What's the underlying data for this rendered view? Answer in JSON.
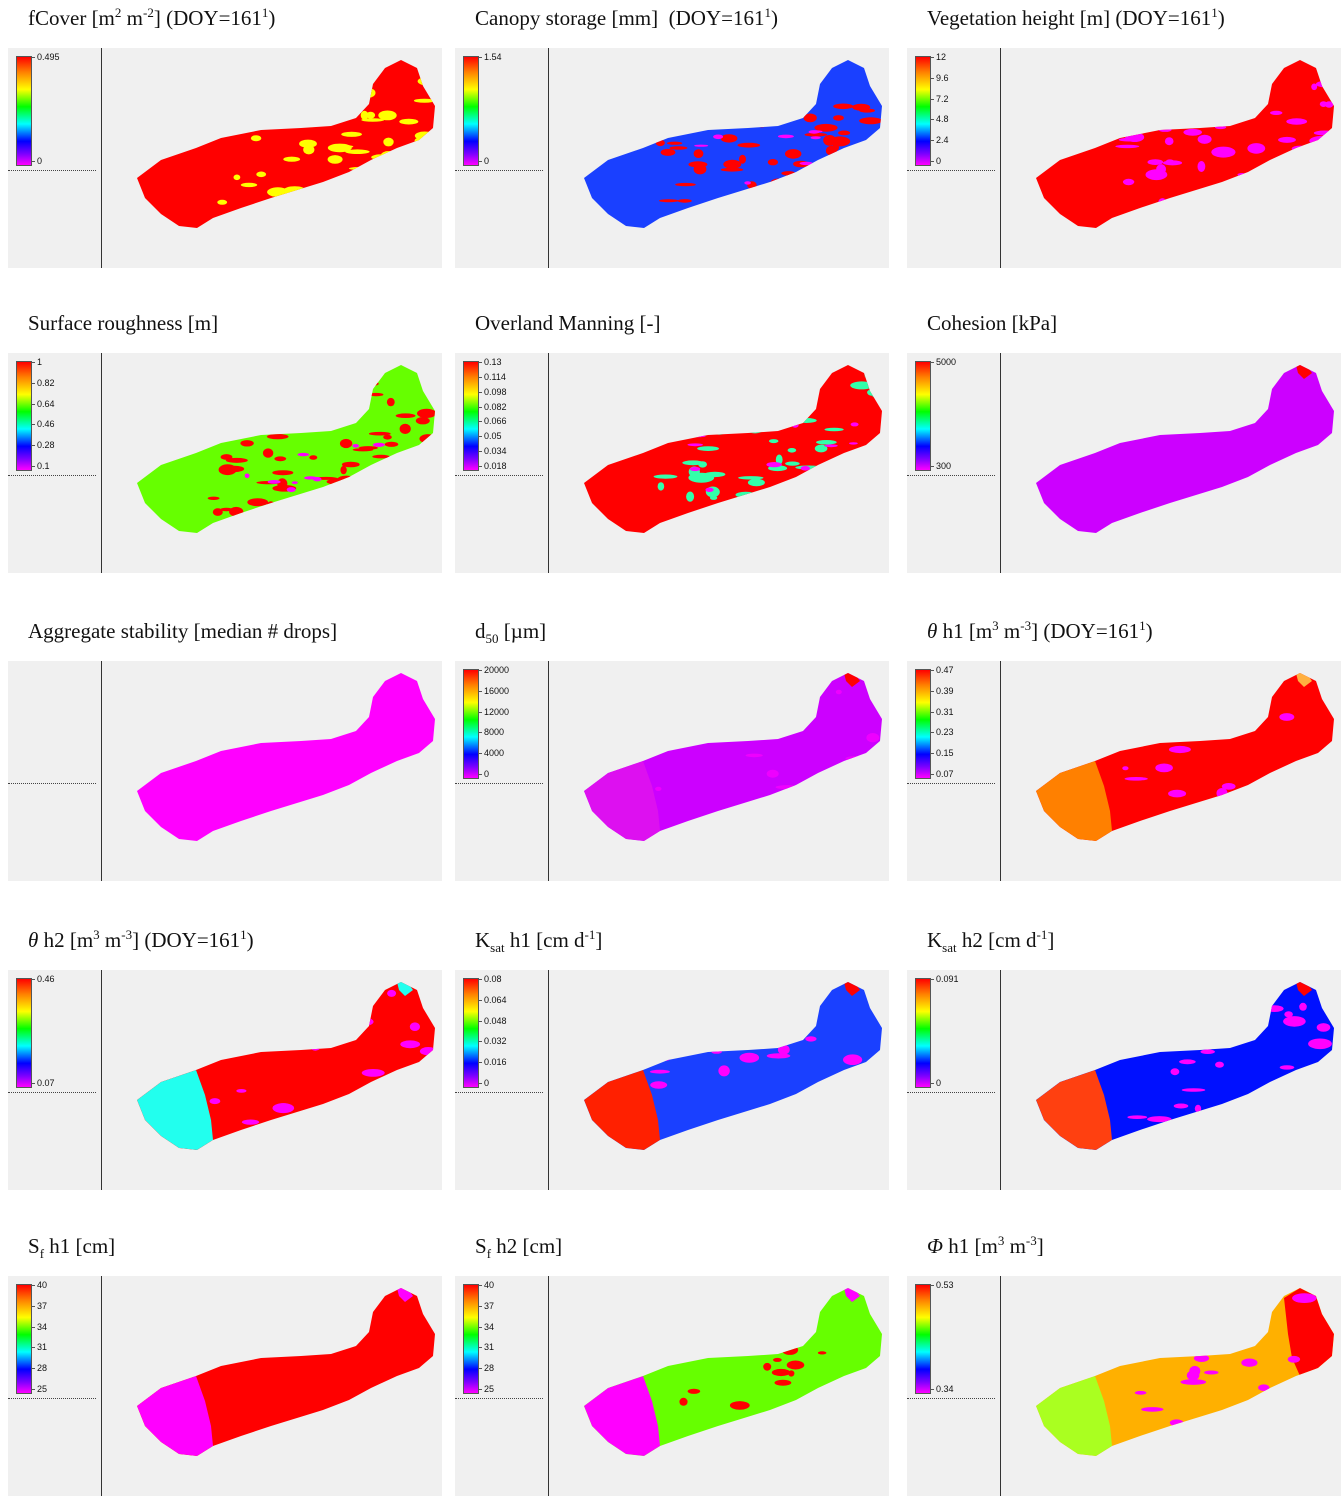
{
  "panels": [
    {
      "title_html": "fCover [m<sup>2</sup> m<sup>-2</sup>] (DOY=161<sup>1</sup>)",
      "ticks": [
        "0.495",
        "0"
      ],
      "map": {
        "base": "#ff0000",
        "patch": "#ffff00",
        "patch2": null,
        "edge": null
      }
    },
    {
      "title_html": "Canopy storage [mm] &nbsp;(DOY=161<sup>1</sup>)",
      "ticks": [
        "1.54",
        "0"
      ],
      "map": {
        "base": "#1a40ff",
        "patch": "#ff0000",
        "patch2": "#ff00ff",
        "edge": null
      }
    },
    {
      "title_html": "Vegetation height [m] (DOY=161<sup>1</sup>)",
      "ticks": [
        "12",
        "9.6",
        "7.2",
        "4.8",
        "2.4",
        "0"
      ],
      "map": {
        "base": "#ff0000",
        "patch": "#ff00ff",
        "patch2": null,
        "edge": null
      }
    },
    {
      "title_html": "Surface roughness [m]",
      "ticks": [
        "1",
        "0.82",
        "0.64",
        "0.46",
        "0.28",
        "0.1"
      ],
      "map": {
        "base": "#66ff00",
        "patch": "#ff0000",
        "patch2": "#ff00ff",
        "edge": null
      }
    },
    {
      "title_html": "Overland Manning [-]",
      "ticks": [
        "0.13",
        "0.114",
        "0.098",
        "0.082",
        "0.066",
        "0.05",
        "0.034",
        "0.018"
      ],
      "map": {
        "base": "#ff0000",
        "patch": "#33ffaa",
        "patch2": "#ff00ff",
        "edge": null
      }
    },
    {
      "title_html": "Cohesion [kPa]",
      "ticks": [
        "5000",
        "300"
      ],
      "map": {
        "base": "#cc00ff",
        "patch": null,
        "patch2": null,
        "edge": null,
        "tip": "#ff0000"
      }
    },
    {
      "title_html": "Aggregate stability [median # drops]",
      "ticks": [],
      "map": {
        "base": "#ff00ff",
        "patch": null,
        "patch2": null,
        "edge": null
      }
    },
    {
      "title_html": "d<sub>50</sub> [µm]",
      "ticks": [
        "20000",
        "16000",
        "12000",
        "8000",
        "4000",
        "0"
      ],
      "map": {
        "base": "#cc00ff",
        "patch": "#ee00ff",
        "patch2": null,
        "edge": "#dd10f0",
        "tip": "#ff0000"
      }
    },
    {
      "title_html": "<i>θ</i> h1 [m<sup>3</sup> m<sup>-3</sup>] (DOY=161<sup>1</sup>)",
      "ticks": [
        "0.47",
        "0.39",
        "0.31",
        "0.23",
        "0.15",
        "0.07"
      ],
      "map": {
        "base": "#ff0000",
        "patch": "#ff00ff",
        "patch2": null,
        "edge": "#ff8000",
        "tip": "#ffb040"
      }
    },
    {
      "title_html": "<i>θ</i> h2 [m<sup>3</sup> m<sup>-3</sup>] (DOY=161<sup>1</sup>)",
      "ticks": [
        "0.46",
        "0.07"
      ],
      "map": {
        "base": "#ff0000",
        "patch": "#ff00ff",
        "patch2": null,
        "edge": "#22ffee",
        "tip": "#22ffee"
      }
    },
    {
      "title_html": "K<sub>sat</sub> h1 [cm d<sup>-1</sup>]",
      "ticks": [
        "0.08",
        "0.064",
        "0.048",
        "0.032",
        "0.016",
        "0"
      ],
      "map": {
        "base": "#1a40ff",
        "patch": "#ff00ff",
        "patch2": null,
        "edge": "#ff2000",
        "tip": "#ff0000"
      }
    },
    {
      "title_html": "K<sub>sat</sub> h2 [cm d<sup>-1</sup>]",
      "ticks": [
        "0.091",
        "0"
      ],
      "map": {
        "base": "#0010ff",
        "patch": "#ff00ff",
        "patch2": null,
        "edge": "#ff4010",
        "tip": "#ff0000"
      }
    },
    {
      "title_html": "S<sub>f</sub> h1 [cm]",
      "ticks": [
        "40",
        "37",
        "34",
        "31",
        "28",
        "25"
      ],
      "map": {
        "base": "#ff0000",
        "patch": null,
        "patch2": null,
        "edge": "#ff00ff",
        "tip": "#ff00ff"
      }
    },
    {
      "title_html": "S<sub>f</sub> h2 [cm]",
      "ticks": [
        "40",
        "37",
        "34",
        "31",
        "28",
        "25"
      ],
      "map": {
        "base": "#66ff00",
        "patch": "#ff0000",
        "patch2": null,
        "edge": "#ff00ff",
        "tip": "#ff00ff"
      }
    },
    {
      "title_html": "<i>Φ</i> h1 [m<sup>3</sup> m<sup>-3</sup>]",
      "ticks": [
        "0.53",
        "0.34"
      ],
      "map": {
        "base": "#ffb000",
        "patch": "#ff00ff",
        "patch2": null,
        "edge": "#aaff20",
        "east": "#ff0000"
      }
    }
  ]
}
